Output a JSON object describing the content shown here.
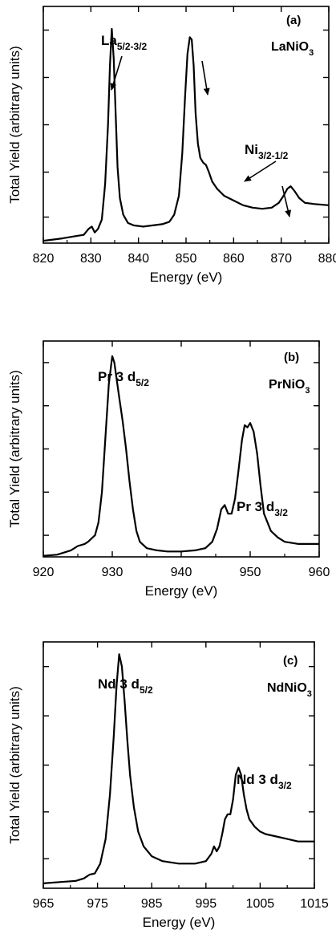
{
  "chart_data": [
    {
      "type": "line",
      "panel_label": "(a)",
      "compound": "LaNiO",
      "compound_sub": "3",
      "xlabel": "Energy  (eV)",
      "ylabel": "Total  Yield  (arbitrary  units)",
      "xlim": [
        820,
        880
      ],
      "ylim": [
        0,
        1
      ],
      "xticks": [
        820,
        830,
        840,
        850,
        860,
        870,
        880
      ],
      "yticks": [
        0.11,
        0.3,
        0.5,
        0.7,
        0.9
      ],
      "x": [
        820,
        824,
        827,
        828.5,
        829.5,
        830.2,
        830.8,
        831.5,
        832.3,
        833,
        833.6,
        834,
        834.4,
        834.8,
        835.2,
        835.6,
        836.1,
        836.8,
        837.8,
        839,
        841,
        843,
        845,
        846.5,
        847.5,
        848.5,
        849.2,
        849.8,
        850.3,
        850.8,
        851.2,
        851.6,
        852,
        852.5,
        853,
        853.6,
        854.2,
        854.8,
        855.5,
        856.5,
        858,
        860,
        862,
        864,
        866,
        868,
        869.5,
        870.5,
        871.3,
        872,
        872.8,
        873.8,
        875,
        877,
        880
      ],
      "y": [
        0.01,
        0.02,
        0.03,
        0.035,
        0.06,
        0.07,
        0.045,
        0.06,
        0.1,
        0.25,
        0.5,
        0.75,
        0.905,
        0.78,
        0.55,
        0.32,
        0.19,
        0.12,
        0.085,
        0.075,
        0.07,
        0.075,
        0.08,
        0.09,
        0.12,
        0.2,
        0.38,
        0.62,
        0.8,
        0.87,
        0.86,
        0.75,
        0.55,
        0.42,
        0.36,
        0.34,
        0.33,
        0.3,
        0.26,
        0.23,
        0.2,
        0.18,
        0.16,
        0.15,
        0.145,
        0.15,
        0.17,
        0.2,
        0.23,
        0.24,
        0.22,
        0.19,
        0.17,
        0.165,
        0.16
      ],
      "annotations": [
        {
          "text": "La",
          "sub": "5/2-3/2",
          "x": 836,
          "y": 0.94
        },
        {
          "text": "Ni",
          "sub": "3/2-1/2",
          "x": 858,
          "y": 0.52
        }
      ]
    },
    {
      "type": "line",
      "panel_label": "(b)",
      "compound": "PrNiO",
      "compound_sub": "3",
      "xlabel": "Energy  (eV)",
      "ylabel": "Total  Yield  (arbitrary  units)",
      "xlim": [
        920,
        960
      ],
      "ylim": [
        0,
        1
      ],
      "xticks": [
        920,
        930,
        940,
        950,
        960
      ],
      "yticks": [
        0.1,
        0.3,
        0.5,
        0.7,
        0.9
      ],
      "x": [
        920,
        922,
        924,
        925,
        926,
        926.5,
        927,
        927.5,
        928,
        928.5,
        929,
        929.5,
        930,
        930.3,
        930.6,
        931,
        931.5,
        932,
        932.5,
        933,
        933.5,
        934,
        935,
        936.5,
        938,
        940,
        942,
        943.5,
        944.5,
        945.2,
        945.8,
        946.3,
        946.8,
        947.3,
        947.8,
        948.3,
        948.8,
        949.2,
        949.6,
        950,
        950.5,
        951,
        951.5,
        952,
        953,
        954,
        955,
        957,
        960
      ],
      "y": [
        0.005,
        0.01,
        0.03,
        0.05,
        0.06,
        0.07,
        0.085,
        0.1,
        0.16,
        0.3,
        0.55,
        0.8,
        0.93,
        0.9,
        0.83,
        0.74,
        0.63,
        0.5,
        0.35,
        0.22,
        0.12,
        0.07,
        0.04,
        0.03,
        0.025,
        0.025,
        0.03,
        0.04,
        0.07,
        0.13,
        0.22,
        0.24,
        0.2,
        0.2,
        0.27,
        0.4,
        0.54,
        0.61,
        0.6,
        0.62,
        0.58,
        0.48,
        0.33,
        0.2,
        0.12,
        0.09,
        0.07,
        0.06,
        0.06
      ],
      "annotations": [
        {
          "text": "Pr  3 d",
          "sub": "5/2",
          "x": 925,
          "y": 1.04
        },
        {
          "text": "Pr  3 d",
          "sub": "3/2",
          "x": 948,
          "y": 0.72
        }
      ]
    },
    {
      "type": "line",
      "panel_label": "(c)",
      "compound": "NdNiO",
      "compound_sub": "3",
      "xlabel": "Energy  (eV)",
      "ylabel": "Total  Yield  (arbitrary  units)",
      "xlim": [
        965,
        1015
      ],
      "ylim": [
        0,
        1
      ],
      "xticks": [
        965,
        975,
        985,
        995,
        1005,
        1015
      ],
      "yticks": [
        0.12,
        0.31,
        0.5,
        0.7,
        0.9
      ],
      "x": [
        965,
        968,
        971,
        972.5,
        973.5,
        974.5,
        975.5,
        976.5,
        977.3,
        978,
        978.5,
        979,
        979.5,
        980,
        980.5,
        981,
        981.7,
        982.5,
        983.5,
        985,
        987,
        990,
        993,
        995,
        996,
        996.5,
        997,
        997.5,
        998,
        998.5,
        999,
        999.5,
        1000,
        1000.5,
        1001,
        1001.5,
        1002,
        1002.5,
        1003,
        1004,
        1005,
        1006,
        1008,
        1010,
        1012,
        1015
      ],
      "y": [
        0.02,
        0.025,
        0.03,
        0.04,
        0.055,
        0.06,
        0.1,
        0.2,
        0.38,
        0.62,
        0.82,
        0.95,
        0.9,
        0.76,
        0.6,
        0.46,
        0.33,
        0.23,
        0.17,
        0.13,
        0.11,
        0.1,
        0.1,
        0.11,
        0.14,
        0.17,
        0.15,
        0.17,
        0.22,
        0.28,
        0.3,
        0.3,
        0.36,
        0.46,
        0.49,
        0.46,
        0.38,
        0.32,
        0.28,
        0.25,
        0.23,
        0.22,
        0.21,
        0.2,
        0.19,
        0.19
      ],
      "annotations": [
        {
          "text": "Nd  3 d",
          "sub": "5/2",
          "x": 969,
          "y": 1.03
        },
        {
          "text": "Nd  3 d",
          "sub": "3/2",
          "x": 1000,
          "y": 0.65
        }
      ]
    }
  ]
}
